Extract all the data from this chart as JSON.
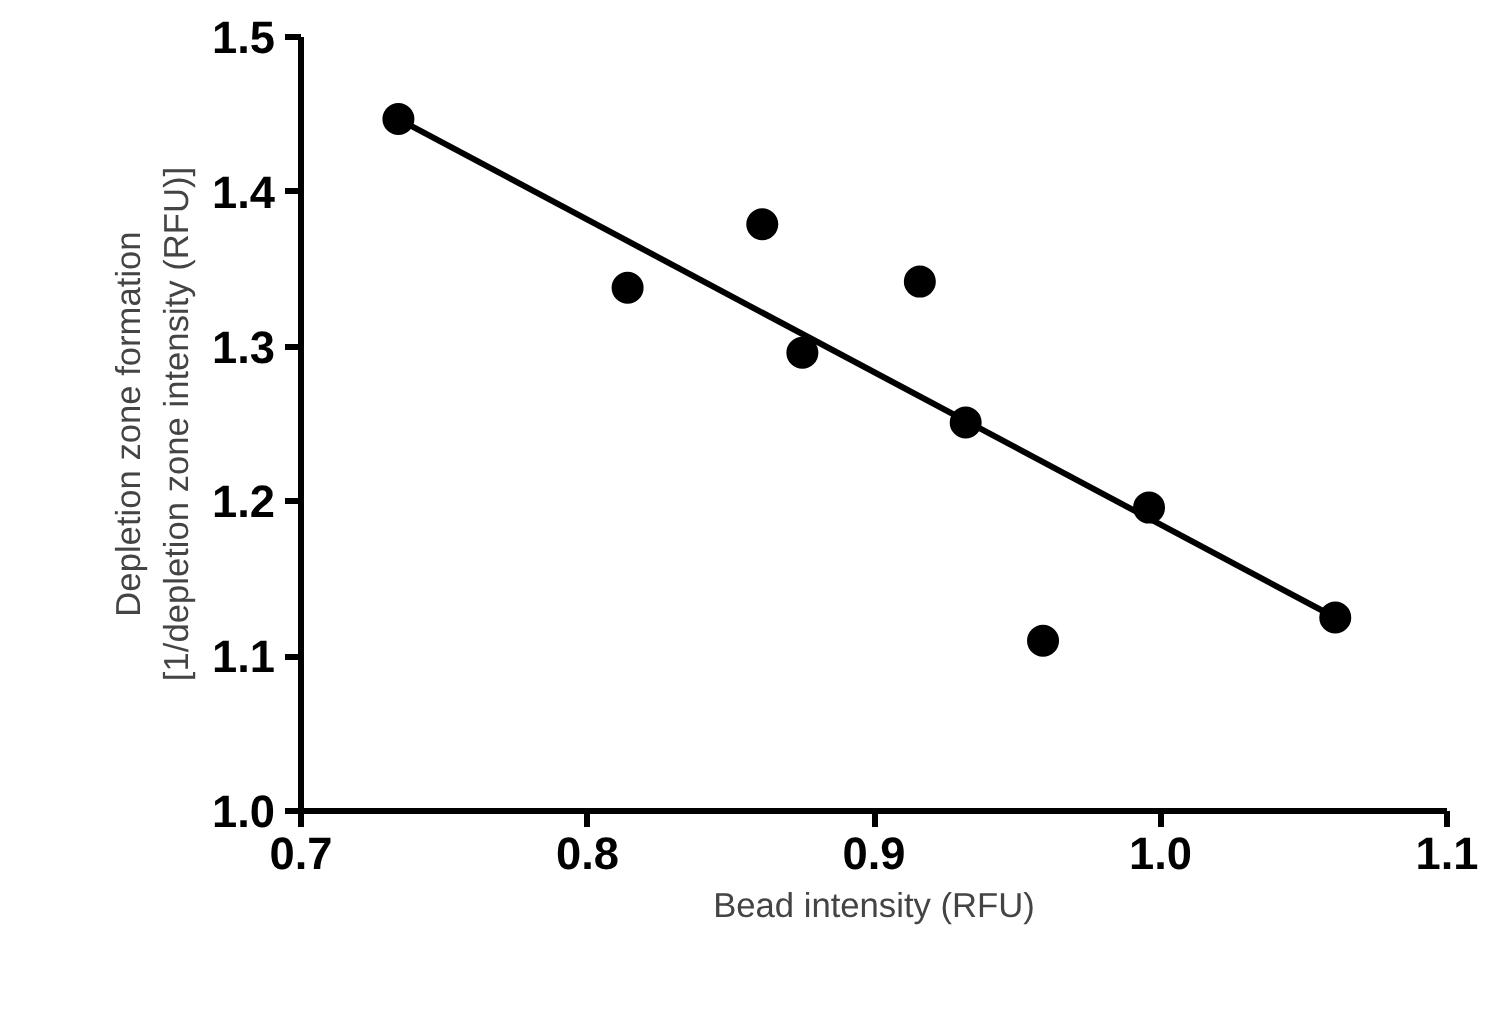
{
  "chart_data": {
    "type": "scatter",
    "xlabel": "Bead intensity (RFU)",
    "ylabel": "Depletion zone formation\n[1/depletion zone intensity (RFU)]",
    "xlim": [
      0.7,
      1.1
    ],
    "ylim": [
      1.0,
      1.5
    ],
    "xticks": [
      0.7,
      0.8,
      0.9,
      {
        "value": 1.0,
        "label": "1.0"
      },
      1.1
    ],
    "yticks": [
      {
        "value": 1.0,
        "label": "1.0"
      },
      1.1,
      1.2,
      1.3,
      1.4,
      1.5
    ],
    "grid": false,
    "series": [
      {
        "marker": "circle",
        "color": "#000000",
        "x": [
          0.734,
          0.814,
          0.861,
          0.875,
          0.916,
          0.932,
          0.959,
          0.996,
          1.061
        ],
        "values": [
          1.447,
          1.338,
          1.379,
          1.296,
          1.342,
          1.251,
          1.11,
          1.196,
          1.125
        ]
      },
      {
        "type": "line",
        "marker": "none",
        "color": "#000000",
        "x": [
          0.734,
          1.061
        ],
        "values": [
          1.447,
          1.125
        ]
      }
    ]
  }
}
